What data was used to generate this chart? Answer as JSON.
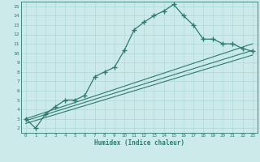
{
  "xlabel": "Humidex (Indice chaleur)",
  "bg_color": "#cceaea",
  "line_color": "#2e7a6d",
  "grid_color": "#b0d8d8",
  "xlim": [
    -0.5,
    23.5
  ],
  "ylim": [
    1.5,
    15.5
  ],
  "xticks": [
    0,
    1,
    2,
    3,
    4,
    5,
    6,
    7,
    8,
    9,
    10,
    11,
    12,
    13,
    14,
    15,
    16,
    17,
    18,
    19,
    20,
    21,
    22,
    23
  ],
  "yticks": [
    2,
    3,
    4,
    5,
    6,
    7,
    8,
    9,
    10,
    11,
    12,
    13,
    14,
    15
  ],
  "main_line": {
    "x": [
      0,
      1,
      2,
      3,
      4,
      5,
      6,
      7,
      8,
      9,
      10,
      11,
      12,
      13,
      14,
      15,
      16,
      17,
      18,
      19,
      20,
      21,
      22,
      23
    ],
    "y": [
      3,
      2,
      3.5,
      4.3,
      5.0,
      5.0,
      5.5,
      7.5,
      8.0,
      8.5,
      10.3,
      12.5,
      13.3,
      14.0,
      14.5,
      15.2,
      14.0,
      13.0,
      11.5,
      11.5,
      11.0,
      11.0,
      10.5,
      10.2
    ]
  },
  "line2": {
    "x": [
      0,
      23
    ],
    "y": [
      3.0,
      11.0
    ]
  },
  "line3": {
    "x": [
      0,
      23
    ],
    "y": [
      2.8,
      10.3
    ]
  },
  "line4": {
    "x": [
      0,
      23
    ],
    "y": [
      2.5,
      9.8
    ]
  }
}
